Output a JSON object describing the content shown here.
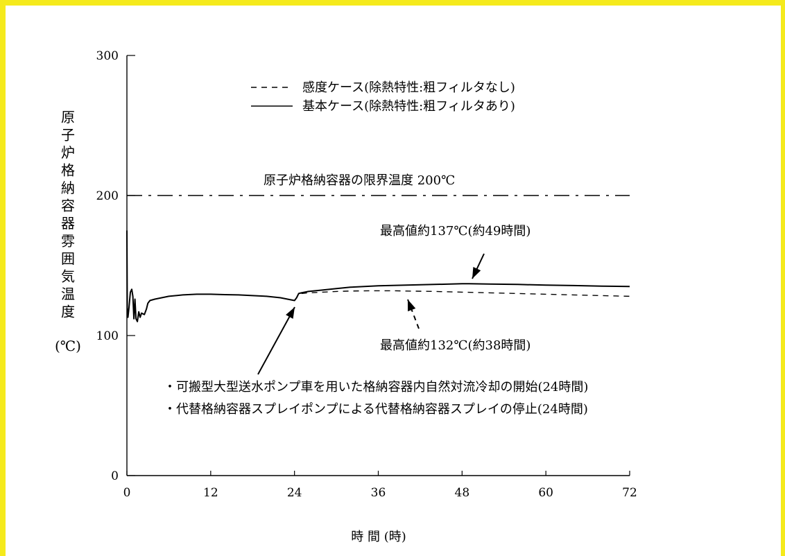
{
  "chart_data": {
    "type": "line",
    "xlabel": "時 間 (時)",
    "ylabel": "原子炉格納容器雰囲気温度",
    "ylabel_unit": "(℃)",
    "xlim": [
      0,
      72
    ],
    "ylim": [
      0,
      300
    ],
    "xticks": [
      0,
      12,
      24,
      36,
      48,
      60,
      72
    ],
    "yticks": [
      0,
      100,
      200,
      300
    ],
    "grid": false,
    "legend_position": "top-center",
    "series": [
      {
        "name": "基本ケース(除熱特性:粗フィルタあり)",
        "style": "solid",
        "x": [
          0,
          0.05,
          0.15,
          0.3,
          0.5,
          0.7,
          0.85,
          1.0,
          1.15,
          1.3,
          1.5,
          1.7,
          1.9,
          2.1,
          2.5,
          2.8,
          3.0,
          3.3,
          4,
          6,
          8,
          10,
          12,
          14,
          16,
          18,
          20,
          22,
          23.5,
          24,
          24.3,
          24.6,
          25,
          26,
          28,
          30,
          32,
          36,
          40,
          44,
          48,
          49,
          52,
          56,
          60,
          64,
          68,
          72
        ],
        "y": [
          175,
          120,
          113,
          120,
          131,
          133,
          128,
          112,
          126,
          112,
          110,
          117,
          113,
          116,
          115,
          119,
          123,
          125,
          126,
          128,
          129,
          129.5,
          129.5,
          129.2,
          129,
          128.5,
          128,
          127,
          125.5,
          125,
          127,
          130,
          130.5,
          131.5,
          132.5,
          133.5,
          134.5,
          135.5,
          136,
          136.5,
          137,
          137,
          136.8,
          136.5,
          136,
          135.7,
          135.3,
          135
        ]
      },
      {
        "name": "感度ケース(除熱特性:粗フィルタなし)",
        "style": "dashed",
        "x": [
          24,
          24.3,
          24.6,
          25,
          26,
          28,
          30,
          32,
          35,
          38,
          40,
          44,
          48,
          52,
          56,
          60,
          64,
          68,
          72
        ],
        "y": [
          125,
          127,
          129.5,
          130,
          130.5,
          131,
          131.5,
          131.8,
          132,
          132,
          131.8,
          131.5,
          131,
          130.5,
          130,
          129.5,
          129,
          128.5,
          128
        ]
      },
      {
        "name": "原子炉格納容器の限界温度 200℃",
        "style": "dashdot",
        "x": [
          0,
          72
        ],
        "y": [
          200,
          200
        ]
      }
    ],
    "annotations": [
      {
        "id": "max-base",
        "text": "最高値約137℃(約49時間)",
        "point": [
          49,
          137
        ]
      },
      {
        "id": "max-sens",
        "text": "最高値約132℃(約38時間)",
        "point": [
          38,
          132
        ]
      },
      {
        "id": "event-1",
        "text": "・可搬型大型送水ポンプ車を用いた格納容器内自然対流冷却の開始(24時間)",
        "point": [
          24,
          125
        ]
      },
      {
        "id": "event-2",
        "text": "・代替格納容器スプレイポンプによる代替格納容器スプレイの停止(24時間)"
      }
    ]
  },
  "colors": {
    "frame": "#f5ea1c",
    "ink": "#000000"
  }
}
